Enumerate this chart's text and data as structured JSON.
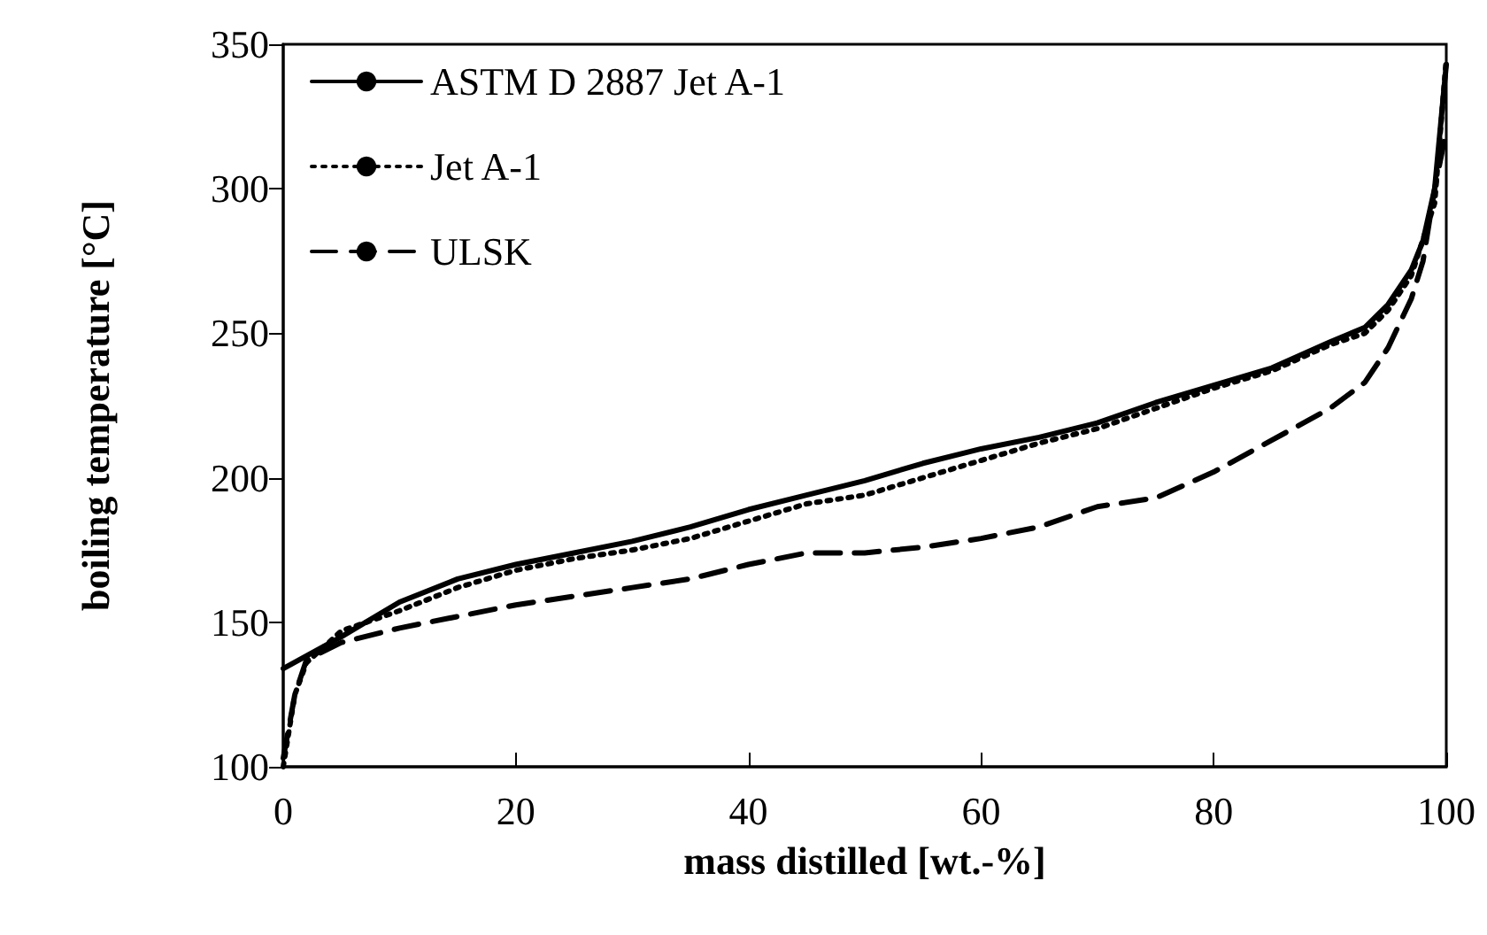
{
  "chart_data": {
    "type": "line",
    "xlabel": "mass distilled [wt.-%]",
    "ylabel": "boiling temperature [°C]",
    "xlim": [
      0,
      100
    ],
    "xticks": [
      0,
      20,
      40,
      60,
      80,
      100
    ],
    "ylim": [
      100,
      350
    ],
    "yticks": [
      100,
      150,
      200,
      250,
      300,
      350
    ],
    "grid": false,
    "legend": "top left",
    "marker": "none",
    "series": [
      {
        "name": "ASTM D 2887 Jet A-1",
        "color": "#000000",
        "line_style": "solid",
        "x": [
          0,
          5,
          10,
          15,
          20,
          25,
          30,
          35,
          40,
          45,
          50,
          55,
          60,
          65,
          70,
          75,
          80,
          85,
          90,
          93,
          95,
          97,
          98,
          99,
          100
        ],
        "values": [
          134,
          145,
          157,
          165,
          170,
          174,
          178,
          183,
          189,
          194,
          199,
          205,
          210,
          214,
          219,
          226,
          232,
          238,
          247,
          252,
          260,
          272,
          282,
          300,
          343
        ]
      },
      {
        "name": "Jet A-1",
        "color": "#000000",
        "line_style": "dotted",
        "x": [
          0,
          1,
          2,
          5,
          10,
          15,
          20,
          25,
          30,
          35,
          40,
          45,
          50,
          55,
          60,
          65,
          70,
          75,
          80,
          85,
          90,
          93,
          95,
          97,
          99,
          100
        ],
        "values": [
          100,
          125,
          136,
          147,
          154,
          162,
          168,
          172,
          175,
          179,
          185,
          191,
          194,
          200,
          206,
          212,
          217,
          224,
          231,
          237,
          246,
          250,
          258,
          270,
          295,
          345
        ]
      },
      {
        "name": "ULSK",
        "color": "#000000",
        "line_style": "dashed",
        "x": [
          0,
          1,
          2,
          5,
          10,
          15,
          20,
          25,
          30,
          35,
          40,
          45,
          50,
          55,
          60,
          65,
          70,
          75,
          80,
          85,
          90,
          93,
          95,
          97,
          98,
          99,
          100
        ],
        "values": [
          103,
          125,
          137,
          143,
          148,
          152,
          156,
          159,
          162,
          165,
          170,
          174,
          174,
          176,
          179,
          183,
          190,
          193,
          202,
          213,
          224,
          233,
          245,
          262,
          275,
          300,
          320
        ]
      }
    ]
  }
}
